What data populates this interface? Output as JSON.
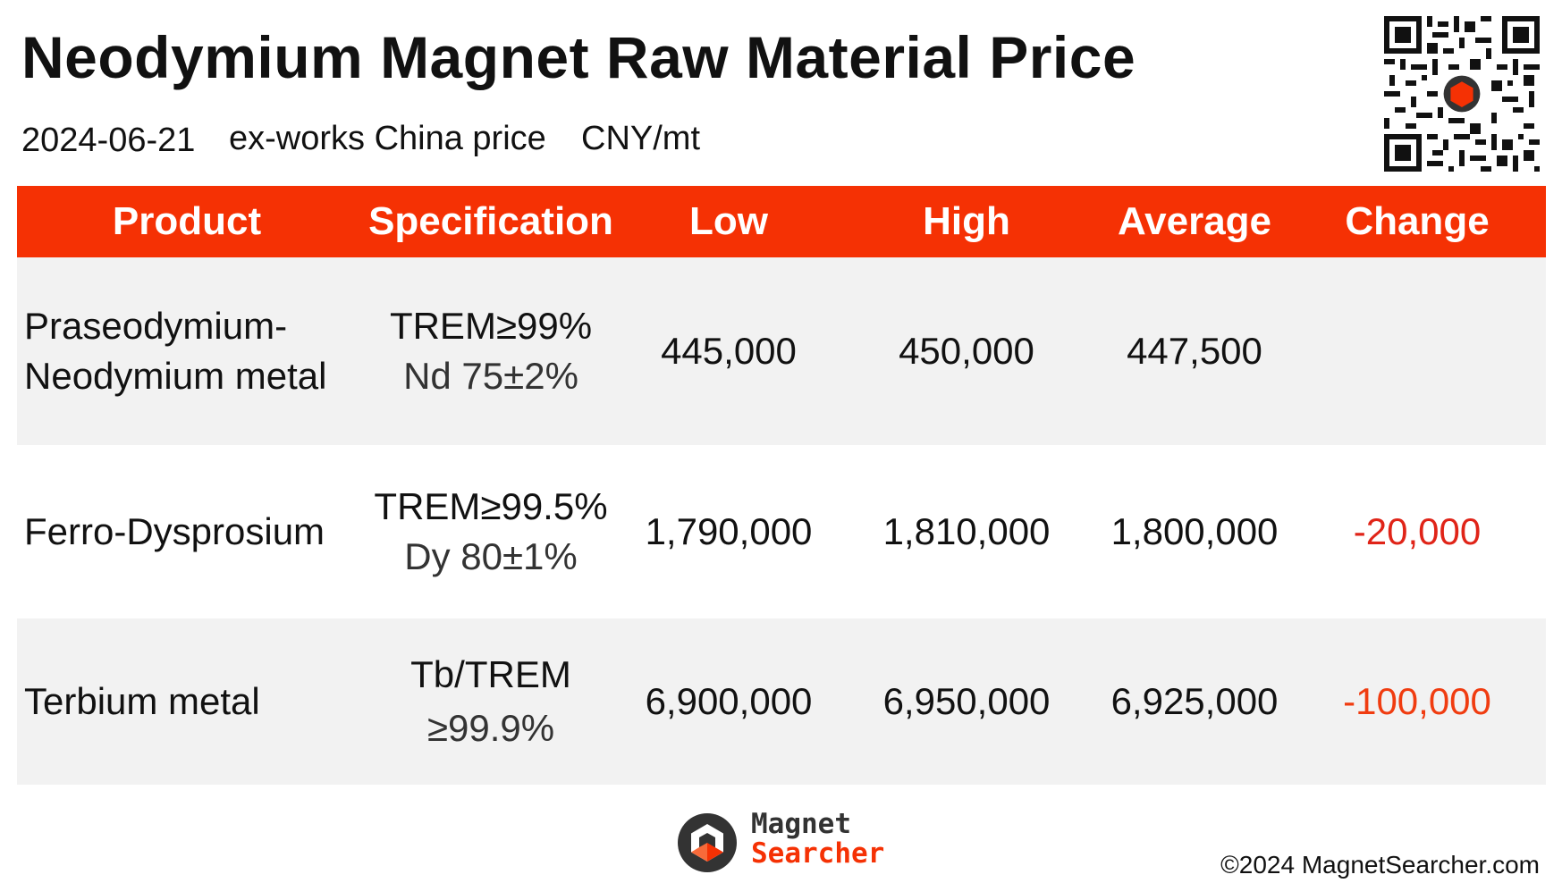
{
  "header": {
    "title": "Neodymium Magnet Raw Material Price",
    "date": "2024-06-21",
    "basis": "ex-works China price",
    "unit": "CNY/mt"
  },
  "table": {
    "columns": [
      "Product",
      "Specification",
      "Low",
      "High",
      "Average",
      "Change"
    ],
    "rows": [
      {
        "product_l1": "Praseodymium-",
        "product_l2": "Neodymium metal",
        "spec_l1": "TREM≥99%",
        "spec_l2": "Nd 75±2%",
        "low": "445,000",
        "high": "450,000",
        "average": "447,500",
        "change": ""
      },
      {
        "product_l1": "Ferro-Dysprosium",
        "product_l2": "",
        "spec_l1": "TREM≥99.5%",
        "spec_l2": "Dy 80±1%",
        "low": "1,790,000",
        "high": "1,810,000",
        "average": "1,800,000",
        "change": "-20,000"
      },
      {
        "product_l1": "Terbium metal",
        "product_l2": "",
        "spec_l1": "Tb/TREM",
        "spec_l2": "≥99.9%",
        "low": "6,900,000",
        "high": "6,950,000",
        "average": "6,925,000",
        "change": "-100,000"
      }
    ]
  },
  "footer": {
    "brand_line1": "Magnet",
    "brand_line2": "Searcher",
    "copyright": "©2024 MagnetSearcher.com"
  },
  "colors": {
    "header_bg": "#f53104",
    "negative_change": "#e02418",
    "row_shade": "#f2f2f2"
  },
  "icons": {
    "qr": "qr-code-icon",
    "logo": "magnet-searcher-logo-icon"
  }
}
